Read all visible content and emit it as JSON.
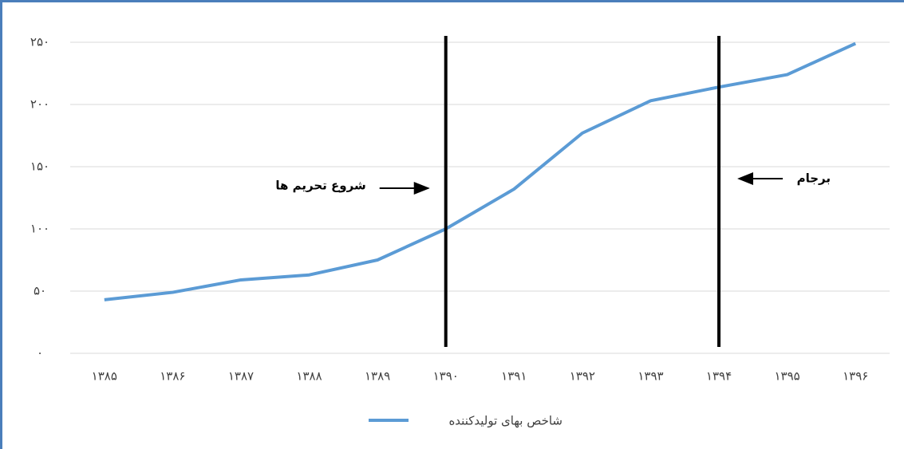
{
  "chart_data": {
    "type": "line",
    "categories": [
      "۱۳۸۵",
      "۱۳۸۶",
      "۱۳۸۷",
      "۱۳۸۸",
      "۱۳۸۹",
      "۱۳۹۰",
      "۱۳۹۱",
      "۱۳۹۲",
      "۱۳۹۳",
      "۱۳۹۴",
      "۱۳۹۵",
      "۱۳۹۶"
    ],
    "series": [
      {
        "name": "شاخص بهای تولیدکننده",
        "color": "#5b9bd5",
        "values": [
          43,
          49,
          59,
          63,
          75,
          100,
          132,
          177,
          203,
          214,
          224,
          249
        ]
      }
    ],
    "ylim": [
      0,
      250
    ],
    "yticks": [
      {
        "value": 0,
        "label": "۰"
      },
      {
        "value": 50,
        "label": "۵۰"
      },
      {
        "value": 100,
        "label": "۱۰۰"
      },
      {
        "value": 150,
        "label": "۱۵۰"
      },
      {
        "value": 200,
        "label": "۲۰۰"
      },
      {
        "value": 250,
        "label": "۲۵۰"
      }
    ],
    "grid": true,
    "legend": "bottom",
    "annotations": [
      {
        "text": "شروع تحریم ها",
        "category": "۱۳۹۰"
      },
      {
        "text": "برجام",
        "category": "۱۳۹۴"
      }
    ]
  }
}
